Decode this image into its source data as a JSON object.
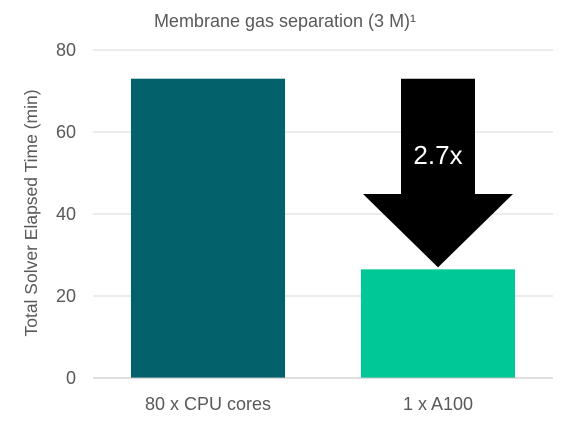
{
  "chart_data": {
    "type": "bar",
    "title": "Membrane gas separation (3 M)¹",
    "ylabel": "Total Solver Elapsed Time (min)",
    "xlabel": "",
    "categories": [
      "80 x CPU cores",
      "1 x A100"
    ],
    "values": [
      73,
      26.5
    ],
    "bar_colors": [
      "#02616b",
      "#00c896"
    ],
    "ylim": [
      0,
      80
    ],
    "yticks": [
      0,
      20,
      40,
      60,
      80
    ],
    "grid": true,
    "grid_color": "#d9d9d9",
    "annotation": {
      "type": "down-arrow",
      "label": "2.7x",
      "color": "#000000",
      "label_color": "#ffffff"
    }
  }
}
